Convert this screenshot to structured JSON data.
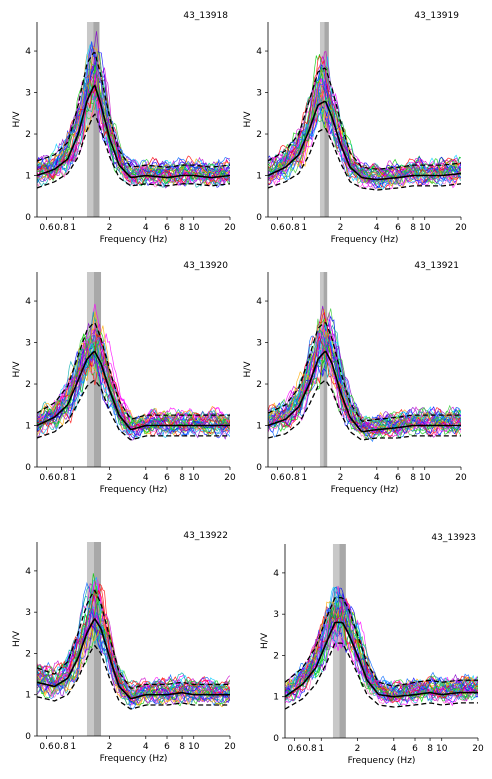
{
  "chart_data": [
    {
      "type": "line",
      "title": "43_13918",
      "xlabel": "Frequency (Hz)",
      "ylabel": "H/V",
      "xscale": "log",
      "xlim": [
        0.5,
        20
      ],
      "ylim": [
        0,
        4.7
      ],
      "x_ticks": [
        "0.6",
        "0.8",
        "1",
        "2",
        "4",
        "6",
        "8",
        "10",
        "20"
      ],
      "y_ticks": [
        "0",
        "1",
        "2",
        "3",
        "4"
      ],
      "peak_band_hz": [
        1.3,
        1.65
      ],
      "x": [
        0.5,
        0.7,
        0.9,
        1.1,
        1.3,
        1.5,
        1.7,
        2.0,
        2.4,
        3.0,
        4.0,
        6.0,
        8.0,
        10.0,
        14.0,
        20.0
      ],
      "series": [
        {
          "name": "",
          "color": "#000000",
          "values": [
            1.0,
            1.15,
            1.4,
            2.0,
            2.8,
            3.2,
            2.7,
            1.9,
            1.25,
            0.95,
            1.0,
            0.95,
            1.0,
            1.0,
            0.95,
            1.0
          ]
        },
        {
          "name": "",
          "color": "#000000",
          "style": "dashed",
          "values": [
            1.35,
            1.5,
            1.8,
            2.7,
            3.7,
            4.0,
            3.4,
            2.4,
            1.6,
            1.2,
            1.25,
            1.2,
            1.25,
            1.25,
            1.2,
            1.25
          ]
        },
        {
          "name": "",
          "color": "#000000",
          "style": "dashed",
          "values": [
            0.7,
            0.85,
            1.05,
            1.45,
            2.1,
            2.5,
            2.1,
            1.45,
            0.95,
            0.75,
            0.8,
            0.75,
            0.8,
            0.8,
            0.75,
            0.8
          ]
        }
      ]
    },
    {
      "type": "line",
      "title": "43_13919",
      "xlabel": "Frequency (Hz)",
      "ylabel": "H/V",
      "xscale": "log",
      "xlim": [
        0.5,
        20
      ],
      "ylim": [
        0,
        4.7
      ],
      "x_ticks": [
        "0.6",
        "0.8",
        "1",
        "2",
        "4",
        "6",
        "8",
        "10",
        "20"
      ],
      "y_ticks": [
        "0",
        "1",
        "2",
        "3",
        "4"
      ],
      "peak_band_hz": [
        1.35,
        1.6
      ],
      "x": [
        0.5,
        0.7,
        0.9,
        1.1,
        1.3,
        1.5,
        1.7,
        2.0,
        2.4,
        3.0,
        4.0,
        6.0,
        8.0,
        10.0,
        14.0,
        20.0
      ],
      "series": [
        {
          "name": "",
          "color": "#000000",
          "values": [
            1.0,
            1.2,
            1.5,
            2.1,
            2.7,
            2.8,
            2.4,
            1.75,
            1.2,
            0.95,
            0.9,
            0.95,
            1.0,
            1.0,
            1.0,
            1.05
          ]
        },
        {
          "name": "",
          "color": "#000000",
          "style": "dashed",
          "values": [
            1.35,
            1.6,
            2.0,
            2.8,
            3.5,
            3.6,
            3.1,
            2.3,
            1.55,
            1.2,
            1.15,
            1.2,
            1.25,
            1.25,
            1.25,
            1.3
          ]
        },
        {
          "name": "",
          "color": "#000000",
          "style": "dashed",
          "values": [
            0.7,
            0.85,
            1.05,
            1.5,
            2.05,
            2.15,
            1.8,
            1.3,
            0.85,
            0.7,
            0.65,
            0.7,
            0.75,
            0.75,
            0.75,
            0.8
          ]
        }
      ]
    },
    {
      "type": "line",
      "title": "43_13920",
      "xlabel": "Frequency (Hz)",
      "ylabel": "H/V",
      "xscale": "log",
      "xlim": [
        0.5,
        20
      ],
      "ylim": [
        0,
        4.7
      ],
      "x_ticks": [
        "0.6",
        "0.8",
        "1",
        "2",
        "4",
        "6",
        "8",
        "10",
        "20"
      ],
      "y_ticks": [
        "0",
        "1",
        "2",
        "3",
        "4"
      ],
      "peak_band_hz": [
        1.3,
        1.7
      ],
      "x": [
        0.5,
        0.7,
        0.9,
        1.1,
        1.3,
        1.5,
        1.7,
        2.0,
        2.4,
        3.0,
        4.0,
        6.0,
        8.0,
        10.0,
        14.0,
        20.0
      ],
      "series": [
        {
          "name": "",
          "color": "#000000",
          "values": [
            1.0,
            1.2,
            1.5,
            2.1,
            2.6,
            2.8,
            2.5,
            1.85,
            1.25,
            0.9,
            1.0,
            1.0,
            1.0,
            1.0,
            1.0,
            1.0
          ]
        },
        {
          "name": "",
          "color": "#000000",
          "style": "dashed",
          "values": [
            1.3,
            1.55,
            1.95,
            2.7,
            3.3,
            3.5,
            3.1,
            2.35,
            1.6,
            1.15,
            1.25,
            1.25,
            1.25,
            1.25,
            1.25,
            1.25
          ]
        },
        {
          "name": "",
          "color": "#000000",
          "style": "dashed",
          "values": [
            0.7,
            0.85,
            1.1,
            1.55,
            1.95,
            2.1,
            1.9,
            1.35,
            0.9,
            0.65,
            0.75,
            0.75,
            0.75,
            0.75,
            0.75,
            0.75
          ]
        }
      ]
    },
    {
      "type": "line",
      "title": "43_13921",
      "xlabel": "Frequency (Hz)",
      "ylabel": "H/V",
      "xscale": "log",
      "xlim": [
        0.5,
        20
      ],
      "ylim": [
        0,
        4.7
      ],
      "x_ticks": [
        "0.6",
        "0.8",
        "1",
        "2",
        "4",
        "6",
        "8",
        "10",
        "20"
      ],
      "y_ticks": [
        "0",
        "1",
        "2",
        "3",
        "4"
      ],
      "peak_band_hz": [
        1.35,
        1.55
      ],
      "x": [
        0.5,
        0.7,
        0.9,
        1.1,
        1.3,
        1.5,
        1.7,
        2.0,
        2.4,
        3.0,
        4.0,
        6.0,
        8.0,
        10.0,
        14.0,
        20.0
      ],
      "series": [
        {
          "name": "",
          "color": "#000000",
          "values": [
            1.0,
            1.15,
            1.45,
            2.0,
            2.6,
            2.8,
            2.5,
            1.8,
            1.2,
            0.85,
            0.9,
            0.95,
            1.0,
            1.0,
            1.0,
            1.0
          ]
        },
        {
          "name": "",
          "color": "#000000",
          "style": "dashed",
          "values": [
            1.3,
            1.5,
            1.9,
            2.65,
            3.35,
            3.5,
            3.1,
            2.3,
            1.55,
            1.1,
            1.15,
            1.2,
            1.25,
            1.25,
            1.25,
            1.25
          ]
        },
        {
          "name": "",
          "color": "#000000",
          "style": "dashed",
          "values": [
            0.7,
            0.8,
            1.05,
            1.5,
            1.95,
            2.1,
            1.85,
            1.3,
            0.85,
            0.65,
            0.7,
            0.7,
            0.75,
            0.75,
            0.75,
            0.75
          ]
        }
      ]
    },
    {
      "type": "line",
      "title": "43_13922",
      "xlabel": "Frequency (Hz)",
      "ylabel": "H/V",
      "xscale": "log",
      "xlim": [
        0.5,
        20
      ],
      "ylim": [
        0,
        4.7
      ],
      "x_ticks": [
        "0.6",
        "0.8",
        "1",
        "2",
        "4",
        "6",
        "8",
        "10",
        "20"
      ],
      "y_ticks": [
        "0",
        "1",
        "2",
        "3",
        "4"
      ],
      "peak_band_hz": [
        1.3,
        1.7
      ],
      "x": [
        0.5,
        0.7,
        0.9,
        1.1,
        1.3,
        1.5,
        1.7,
        2.0,
        2.4,
        3.0,
        4.0,
        6.0,
        8.0,
        10.0,
        14.0,
        20.0
      ],
      "series": [
        {
          "name": "",
          "color": "#000000",
          "values": [
            1.3,
            1.2,
            1.4,
            1.9,
            2.5,
            2.85,
            2.6,
            1.9,
            1.2,
            0.9,
            1.0,
            1.0,
            1.05,
            1.0,
            1.0,
            1.0
          ]
        },
        {
          "name": "",
          "color": "#000000",
          "style": "dashed",
          "values": [
            1.65,
            1.5,
            1.8,
            2.5,
            3.2,
            3.55,
            3.2,
            2.4,
            1.55,
            1.15,
            1.25,
            1.25,
            1.3,
            1.25,
            1.25,
            1.25
          ]
        },
        {
          "name": "",
          "color": "#000000",
          "style": "dashed",
          "values": [
            0.95,
            0.85,
            1.0,
            1.4,
            1.9,
            2.2,
            2.0,
            1.4,
            0.85,
            0.65,
            0.75,
            0.75,
            0.8,
            0.75,
            0.75,
            0.75
          ]
        }
      ]
    },
    {
      "type": "line",
      "title": "43_13923",
      "xlabel": "Frequency (Hz)",
      "ylabel": "H/V",
      "xscale": "log",
      "xlim": [
        0.5,
        20
      ],
      "ylim": [
        0,
        4.7
      ],
      "x_ticks": [
        "0.6",
        "0.8",
        "1",
        "2",
        "4",
        "6",
        "8",
        "10",
        "20"
      ],
      "y_ticks": [
        "0",
        "1",
        "2",
        "3",
        "4"
      ],
      "peak_band_hz": [
        1.25,
        1.6
      ],
      "x": [
        0.5,
        0.7,
        0.9,
        1.1,
        1.3,
        1.5,
        1.7,
        2.0,
        2.4,
        3.0,
        4.0,
        6.0,
        8.0,
        10.0,
        14.0,
        20.0
      ],
      "series": [
        {
          "name": "",
          "color": "#000000",
          "values": [
            1.0,
            1.3,
            1.7,
            2.3,
            2.8,
            2.8,
            2.5,
            2.0,
            1.4,
            1.05,
            1.0,
            1.05,
            1.1,
            1.05,
            1.1,
            1.1
          ]
        },
        {
          "name": "",
          "color": "#000000",
          "style": "dashed",
          "values": [
            1.35,
            1.7,
            2.2,
            2.9,
            3.4,
            3.4,
            3.1,
            2.5,
            1.8,
            1.35,
            1.25,
            1.35,
            1.4,
            1.35,
            1.4,
            1.4
          ]
        },
        {
          "name": "",
          "color": "#000000",
          "style": "dashed",
          "values": [
            0.7,
            0.95,
            1.3,
            1.8,
            2.3,
            2.3,
            2.0,
            1.55,
            1.05,
            0.8,
            0.75,
            0.8,
            0.85,
            0.8,
            0.85,
            0.85
          ]
        }
      ]
    }
  ]
}
